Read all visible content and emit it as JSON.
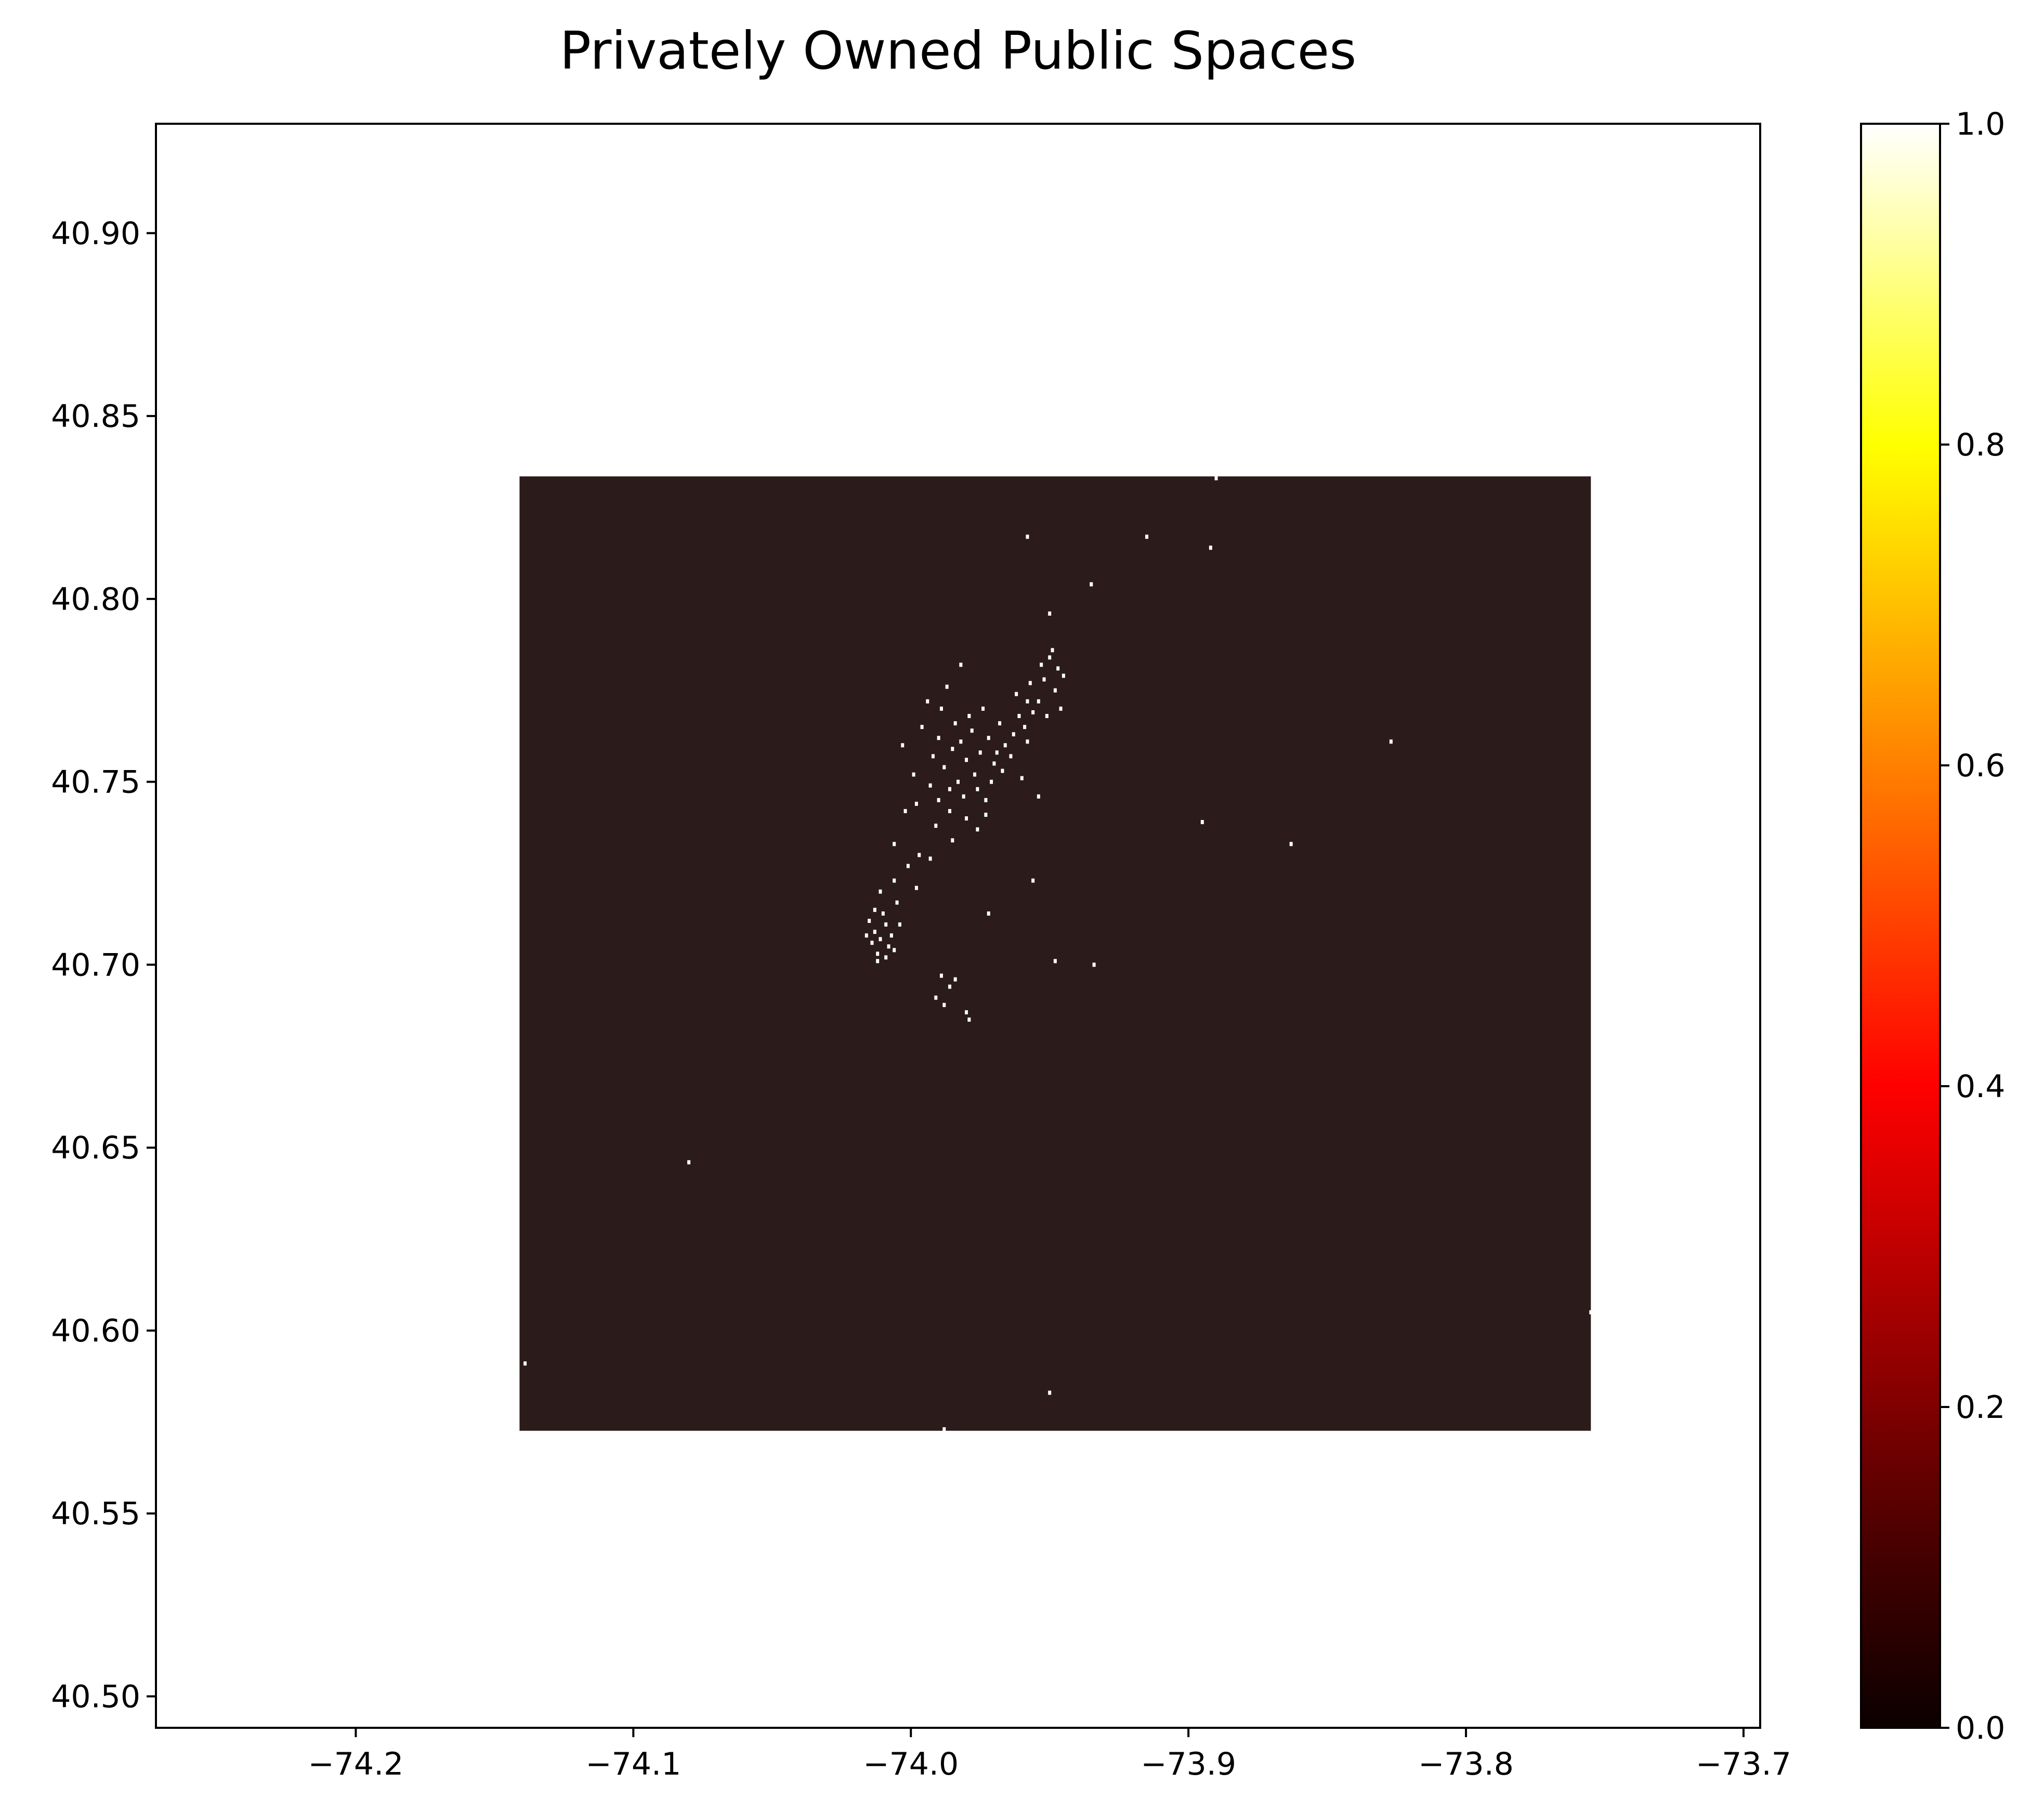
{
  "chart_data": {
    "type": "heatmap",
    "title": "Privately Owned Public Spaces",
    "xlabel": "",
    "ylabel": "",
    "xlim": [
      -74.272,
      -73.694
    ],
    "ylim": [
      40.4914,
      40.9299
    ],
    "xticks": [
      -74.2,
      -74.1,
      -74.0,
      -73.9,
      -73.8,
      -73.7
    ],
    "xtick_labels": [
      "−74.2",
      "−74.1",
      "−74.0",
      "−73.9",
      "−73.8",
      "−73.7"
    ],
    "yticks": [
      40.5,
      40.55,
      40.6,
      40.65,
      40.7,
      40.75,
      40.8,
      40.85,
      40.9
    ],
    "ytick_labels": [
      "40.50",
      "40.55",
      "40.60",
      "40.65",
      "40.70",
      "40.75",
      "40.80",
      "40.85",
      "40.90"
    ],
    "grid": false,
    "colormap": "hot",
    "colorbar": {
      "range": [
        0.0,
        1.0
      ],
      "ticks": [
        0.0,
        0.2,
        0.4,
        0.6,
        0.8,
        1.0
      ],
      "tick_labels": [
        "0.0",
        "0.2",
        "0.4",
        "0.6",
        "0.8",
        "1.0"
      ],
      "stops": [
        "#0b0000",
        "#400000",
        "#800000",
        "#c00000",
        "#ff0000",
        "#ff4000",
        "#ff8000",
        "#ffc000",
        "#ffff00",
        "#ffff80",
        "#ffffff"
      ]
    },
    "grid_extent": {
      "x": [
        -74.141,
        -73.755
      ],
      "y": [
        40.5726,
        40.8335
      ]
    },
    "background_value": 0.05,
    "background_color": "#2b1b1b",
    "point_color": "#ffffff",
    "points": [
      [
        -73.978,
        40.764
      ],
      [
        -73.982,
        40.761
      ],
      [
        -73.975,
        40.758
      ],
      [
        -73.98,
        40.756
      ],
      [
        -73.985,
        40.759
      ],
      [
        -73.972,
        40.762
      ],
      [
        -73.977,
        40.752
      ],
      [
        -73.983,
        40.75
      ],
      [
        -73.97,
        40.755
      ],
      [
        -73.988,
        40.754
      ],
      [
        -73.976,
        40.748
      ],
      [
        -73.981,
        40.746
      ],
      [
        -73.973,
        40.745
      ],
      [
        -73.986,
        40.748
      ],
      [
        -73.979,
        40.768
      ],
      [
        -73.984,
        40.766
      ],
      [
        -73.974,
        40.77
      ],
      [
        -73.968,
        40.766
      ],
      [
        -73.966,
        40.76
      ],
      [
        -73.99,
        40.762
      ],
      [
        -73.992,
        40.757
      ],
      [
        -73.989,
        40.77
      ],
      [
        -73.994,
        40.772
      ],
      [
        -73.987,
        40.776
      ],
      [
        -73.982,
        40.782
      ],
      [
        -73.986,
        40.742
      ],
      [
        -73.98,
        40.74
      ],
      [
        -73.976,
        40.737
      ],
      [
        -73.99,
        40.745
      ],
      [
        -73.993,
        40.749
      ],
      [
        -73.971,
        40.75
      ],
      [
        -73.969,
        40.758
      ],
      [
        -73.963,
        40.763
      ],
      [
        -73.961,
        40.768
      ],
      [
        -73.958,
        40.772
      ],
      [
        -73.991,
        40.738
      ],
      [
        -73.985,
        40.734
      ],
      [
        -73.998,
        40.744
      ],
      [
        -74.002,
        40.742
      ],
      [
        -74.006,
        40.733
      ],
      [
        -73.999,
        40.752
      ],
      [
        -74.003,
        40.76
      ],
      [
        -73.996,
        40.765
      ],
      [
        -73.973,
        40.741
      ],
      [
        -73.967,
        40.753
      ],
      [
        -73.95,
        40.784
      ],
      [
        -73.947,
        40.781
      ],
      [
        -73.952,
        40.778
      ],
      [
        -73.948,
        40.775
      ],
      [
        -73.954,
        40.772
      ],
      [
        -73.946,
        40.77
      ],
      [
        -73.951,
        40.768
      ],
      [
        -73.956,
        40.769
      ],
      [
        -73.949,
        40.786
      ],
      [
        -73.953,
        40.782
      ],
      [
        -73.957,
        40.777
      ],
      [
        -73.945,
        40.779
      ],
      [
        -73.959,
        40.765
      ],
      [
        -73.962,
        40.774
      ],
      [
        -73.958,
        40.761
      ],
      [
        -73.964,
        40.757
      ],
      [
        -73.96,
        40.751
      ],
      [
        -74.011,
        40.707
      ],
      [
        -74.008,
        40.705
      ],
      [
        -74.013,
        40.709
      ],
      [
        -74.009,
        40.711
      ],
      [
        -74.012,
        40.703
      ],
      [
        -74.014,
        40.706
      ],
      [
        -74.007,
        40.708
      ],
      [
        -74.01,
        40.714
      ],
      [
        -74.015,
        40.712
      ],
      [
        -74.006,
        40.704
      ],
      [
        -74.009,
        40.702
      ],
      [
        -74.013,
        40.715
      ],
      [
        -74.011,
        40.72
      ],
      [
        -74.005,
        40.717
      ],
      [
        -74.004,
        40.711
      ],
      [
        -74.016,
        40.708
      ],
      [
        -74.012,
        40.701
      ],
      [
        -74.001,
        40.727
      ],
      [
        -73.997,
        40.73
      ],
      [
        -73.993,
        40.729
      ],
      [
        -74.006,
        40.723
      ],
      [
        -73.998,
        40.721
      ],
      [
        -73.989,
        40.697
      ],
      [
        -73.986,
        40.694
      ],
      [
        -73.991,
        40.691
      ],
      [
        -73.988,
        40.689
      ],
      [
        -73.984,
        40.696
      ],
      [
        -73.98,
        40.687
      ],
      [
        -73.979,
        40.685
      ],
      [
        -73.958,
        40.817
      ],
      [
        -73.915,
        40.817
      ],
      [
        -73.892,
        40.814
      ],
      [
        -73.935,
        40.804
      ],
      [
        -73.95,
        40.796
      ],
      [
        -73.827,
        40.761
      ],
      [
        -73.895,
        40.739
      ],
      [
        -73.863,
        40.733
      ],
      [
        -73.956,
        40.723
      ],
      [
        -73.972,
        40.714
      ],
      [
        -73.948,
        40.701
      ],
      [
        -73.934,
        40.7
      ],
      [
        -74.08,
        40.646
      ],
      [
        -73.95,
        40.583
      ],
      [
        -73.988,
        40.573
      ],
      [
        -74.139,
        40.591
      ],
      [
        -73.755,
        40.605
      ],
      [
        -73.89,
        40.833
      ],
      [
        -73.954,
        40.746
      ]
    ]
  }
}
